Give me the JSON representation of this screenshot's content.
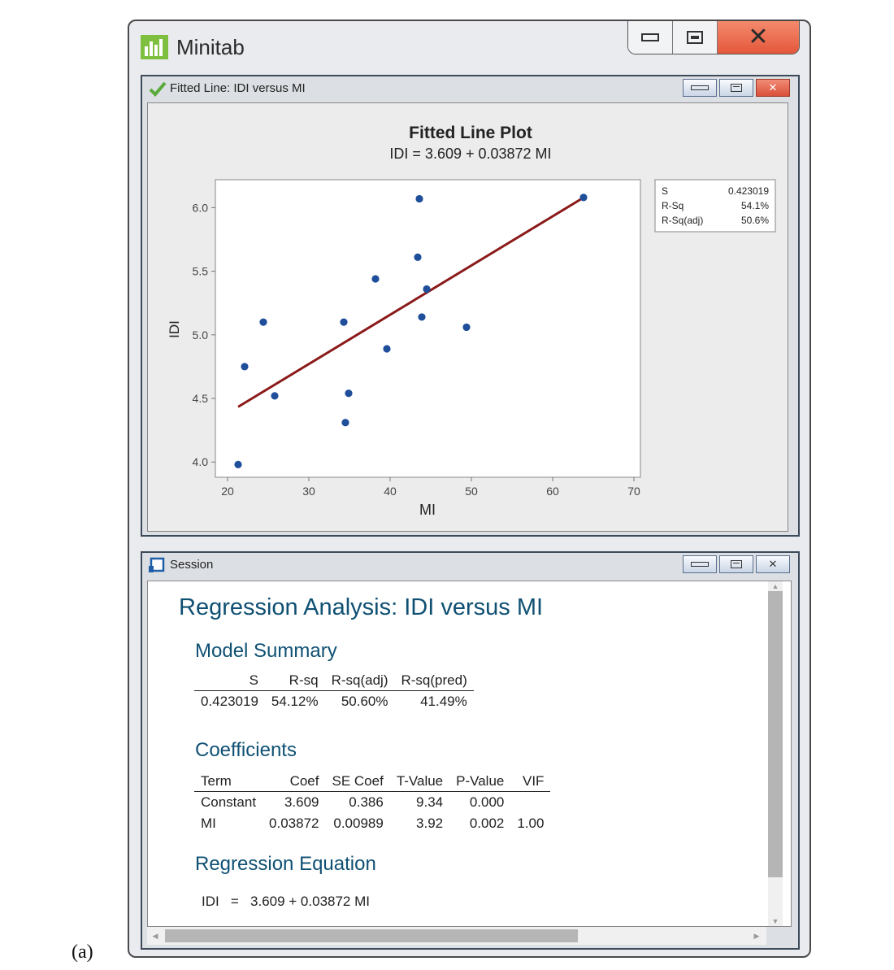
{
  "figure_label": "(a)",
  "app": {
    "title": "Minitab"
  },
  "plot_window": {
    "title": "Fitted Line: IDI versus MI",
    "chart_data": {
      "type": "scatter",
      "title": "Fitted Line Plot",
      "subtitle": "IDI = 3.609 + 0.03872 MI",
      "xlabel": "MI",
      "ylabel": "IDI",
      "xlim": [
        18.5,
        70.8
      ],
      "ylim": [
        3.88,
        6.22
      ],
      "x_ticks": [
        20,
        30,
        40,
        50,
        60,
        70
      ],
      "x_tick_labels": [
        "20",
        "30",
        "40",
        "50",
        "60",
        "70"
      ],
      "y_ticks": [
        4.0,
        4.5,
        5.0,
        5.5,
        6.0
      ],
      "y_tick_labels": [
        "4.0",
        "4.5",
        "5.0",
        "5.5",
        "6.0"
      ],
      "points": [
        {
          "x": 21.3,
          "y": 3.98
        },
        {
          "x": 22.1,
          "y": 4.75
        },
        {
          "x": 24.4,
          "y": 5.1
        },
        {
          "x": 25.8,
          "y": 4.52
        },
        {
          "x": 34.3,
          "y": 5.1
        },
        {
          "x": 34.5,
          "y": 4.31
        },
        {
          "x": 34.9,
          "y": 4.54
        },
        {
          "x": 38.2,
          "y": 5.44
        },
        {
          "x": 39.6,
          "y": 4.89
        },
        {
          "x": 43.4,
          "y": 5.61
        },
        {
          "x": 43.6,
          "y": 6.07
        },
        {
          "x": 43.9,
          "y": 5.14
        },
        {
          "x": 44.5,
          "y": 5.36
        },
        {
          "x": 49.4,
          "y": 5.06
        },
        {
          "x": 63.8,
          "y": 6.08
        }
      ],
      "fit_line": {
        "intercept": 3.609,
        "slope": 0.03872,
        "x_range": [
          21.3,
          63.8
        ]
      },
      "point_color": "#1f4e9a",
      "line_color": "#8b1a1a",
      "stats_box": [
        {
          "label": "S",
          "value": "0.423019"
        },
        {
          "label": "R-Sq",
          "value": "54.1%"
        },
        {
          "label": "R-Sq(adj)",
          "value": "50.6%"
        }
      ]
    }
  },
  "session_window": {
    "title": "Session",
    "heading": "Regression Analysis: IDI versus MI",
    "model_summary": {
      "heading": "Model Summary",
      "headers": [
        "S",
        "R-sq",
        "R-sq(adj)",
        "R-sq(pred)"
      ],
      "values": [
        "0.423019",
        "54.12%",
        "50.60%",
        "41.49%"
      ]
    },
    "coefficients": {
      "heading": "Coefficients",
      "headers": [
        "Term",
        "Coef",
        "SE Coef",
        "T-Value",
        "P-Value",
        "VIF"
      ],
      "rows": [
        [
          "Constant",
          "3.609",
          "0.386",
          "9.34",
          "0.000",
          ""
        ],
        [
          "MI",
          "0.03872",
          "0.00989",
          "3.92",
          "0.002",
          "1.00"
        ]
      ]
    },
    "regression_equation": {
      "heading": "Regression Equation",
      "lhs": "IDI",
      "equals": "=",
      "rhs": "3.609 + 0.03872 MI"
    }
  }
}
